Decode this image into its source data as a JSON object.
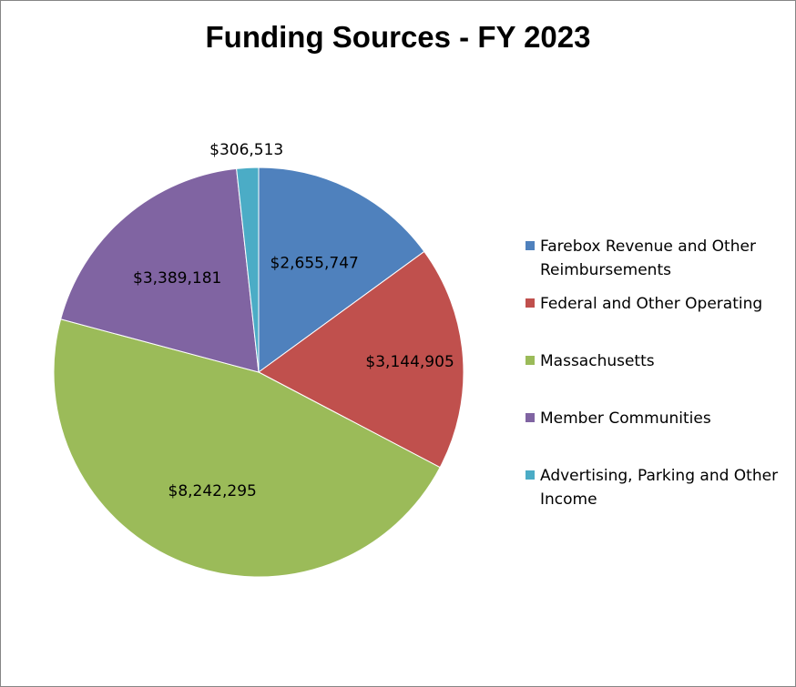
{
  "chart_data": {
    "type": "pie",
    "title": "Funding Sources - FY 2023",
    "legend_position": "right",
    "start_angle_deg": 0,
    "direction": "clockwise",
    "slices": [
      {
        "label_lines": [
          "Farebox Revenue and Other",
          "Reimbursements"
        ],
        "value": 2655747,
        "display": "$2,655,747",
        "color": "#4F81BD"
      },
      {
        "label_lines": [
          "Federal and Other Operating"
        ],
        "value": 3144905,
        "display": "$3,144,905",
        "color": "#C0504D"
      },
      {
        "label_lines": [
          "Massachusetts"
        ],
        "value": 8242295,
        "display": "$8,242,295",
        "color": "#9BBB59"
      },
      {
        "label_lines": [
          "Member Communities"
        ],
        "value": 3389181,
        "display": "$3,389,181",
        "color": "#8064A2"
      },
      {
        "label_lines": [
          "Advertising, Parking and Other",
          "Income"
        ],
        "value": 306513,
        "display": "$306,513",
        "color": "#4BACC6"
      }
    ]
  }
}
